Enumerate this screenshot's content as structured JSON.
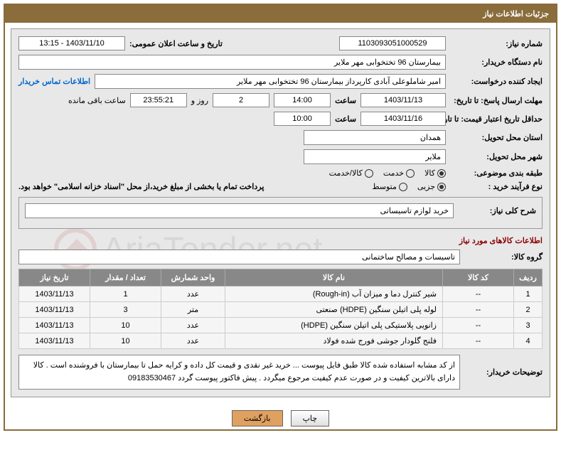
{
  "header": {
    "title": "جزئیات اطلاعات نیاز"
  },
  "fields": {
    "need_number_label": "شماره نیاز:",
    "need_number": "1103093051000529",
    "announce_date_label": "تاریخ و ساعت اعلان عمومی:",
    "announce_date": "1403/11/10 - 13:15",
    "buyer_org_label": "نام دستگاه خریدار:",
    "buyer_org": "بیمارستان 96 تختخوابی مهر ملایر",
    "creator_label": "ایجاد کننده درخواست:",
    "creator": "امیر شاملوعلی آبادی کارپرداز بیمارستان 96 تختخوابی مهر ملایر",
    "contact_link": "اطلاعات تماس خریدار",
    "deadline_label": "مهلت ارسال پاسخ: تا تاریخ:",
    "deadline_date": "1403/11/13",
    "time_label": "ساعت",
    "deadline_time": "14:00",
    "days_count": "2",
    "days_text": "روز و",
    "countdown": "23:55:21",
    "countdown_text": "ساعت باقی مانده",
    "validity_label": "حداقل تاریخ اعتبار قیمت: تا تاریخ:",
    "validity_date": "1403/11/16",
    "validity_time": "10:00",
    "province_label": "استان محل تحویل:",
    "province": "همدان",
    "city_label": "شهر محل تحویل:",
    "city": "ملایر",
    "category_label": "طبقه بندی موضوعی:",
    "purchase_type_label": "نوع فرآیند خرید :",
    "payment_note": "پرداخت تمام یا بخشی از مبلغ خرید،از محل \"اسناد خزانه اسلامی\" خواهد بود.",
    "summary_label": "شرح کلی نیاز:",
    "summary": "خرید لوازم تاسیساتی",
    "goods_section": "اطلاعات کالاهای مورد نیاز",
    "group_label": "گروه کالا:",
    "group": "تاسیسات و مصالح ساختمانی",
    "buyer_desc_label": "توضیحات خریدار:",
    "buyer_desc": "از کد مشابه استفاده شده کالا طبق فایل پیوست ... خرید غیر نقدی و قیمت کل داده و کرایه حمل تا بیمارستان با فروشنده است . کالا دارای بالاترین کیفیت و در صورت عدم کیفیت مرجوع میگردد .  پیش فاکتور پیوست گردد 09183530467"
  },
  "radios": {
    "category": [
      {
        "label": "کالا",
        "checked": true
      },
      {
        "label": "خدمت",
        "checked": false
      },
      {
        "label": "کالا/خدمت",
        "checked": false
      }
    ],
    "purchase": [
      {
        "label": "جزیی",
        "checked": true
      },
      {
        "label": "متوسط",
        "checked": false
      }
    ]
  },
  "table": {
    "headers": [
      "ردیف",
      "کد کالا",
      "نام کالا",
      "واحد شمارش",
      "تعداد / مقدار",
      "تاریخ نیاز"
    ],
    "rows": [
      [
        "1",
        "--",
        "شیر کنترل دما و میزان آب (Rough-in)",
        "عدد",
        "1",
        "1403/11/13"
      ],
      [
        "2",
        "--",
        "لوله پلی اتیلن سنگین (HDPE) صنعتی",
        "متر",
        "3",
        "1403/11/13"
      ],
      [
        "3",
        "--",
        "زانویی پلاستیکی پلی اتیلن سنگین (HDPE)",
        "عدد",
        "10",
        "1403/11/13"
      ],
      [
        "4",
        "--",
        "فلنج گلودار جوشی فورج شده فولاد",
        "عدد",
        "10",
        "1403/11/13"
      ]
    ]
  },
  "buttons": {
    "print": "چاپ",
    "back": "بازگشت"
  },
  "watermark": "AriaTender.net"
}
